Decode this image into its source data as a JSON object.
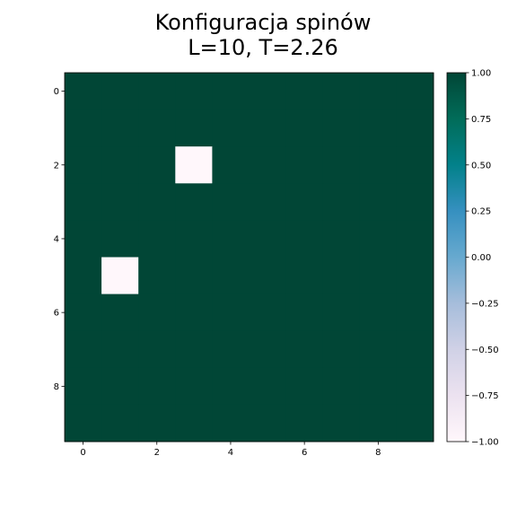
{
  "chart_data": {
    "type": "heatmap",
    "title_line1": "Konfiguracja spinów",
    "title_line2": "L=10, T=2.26",
    "xlabel": "",
    "ylabel": "",
    "grid_size": 10,
    "x_ticks": [
      0,
      2,
      4,
      6,
      8
    ],
    "x_tick_labels": [
      "0",
      "2",
      "4",
      "6",
      "8"
    ],
    "y_ticks": [
      0,
      2,
      4,
      6,
      8
    ],
    "y_tick_labels": [
      "0",
      "2",
      "4",
      "6",
      "8"
    ],
    "xlim": [
      -0.5,
      9.5
    ],
    "ylim": [
      9.5,
      -0.5
    ],
    "colormap": "PuBuGn",
    "vmin": -1,
    "vmax": 1,
    "colorbar_ticks": [
      1.0,
      0.75,
      0.5,
      0.25,
      0.0,
      -0.25,
      -0.5,
      -0.75,
      -1.0
    ],
    "colorbar_tick_labels": [
      "1.00",
      "0.75",
      "0.50",
      "0.25",
      "0.00",
      "−0.25",
      "−0.50",
      "−0.75",
      "−1.00"
    ],
    "colorbar_stops": [
      "#fff7fb",
      "#ece2f0",
      "#d0d1e6",
      "#a6bddb",
      "#67a9cf",
      "#3690c0",
      "#02818a",
      "#016c59",
      "#014636"
    ],
    "values": [
      [
        1,
        1,
        1,
        1,
        1,
        1,
        1,
        1,
        1,
        1
      ],
      [
        1,
        1,
        1,
        1,
        1,
        1,
        1,
        1,
        1,
        1
      ],
      [
        1,
        1,
        1,
        -1,
        1,
        1,
        1,
        1,
        1,
        1
      ],
      [
        1,
        1,
        1,
        1,
        1,
        1,
        1,
        1,
        1,
        1
      ],
      [
        1,
        1,
        1,
        1,
        1,
        1,
        1,
        1,
        1,
        1
      ],
      [
        1,
        -1,
        1,
        1,
        1,
        1,
        1,
        1,
        1,
        1
      ],
      [
        1,
        1,
        1,
        1,
        1,
        1,
        1,
        1,
        1,
        1
      ],
      [
        1,
        1,
        1,
        1,
        1,
        1,
        1,
        1,
        1,
        1
      ],
      [
        1,
        1,
        1,
        1,
        1,
        1,
        1,
        1,
        1,
        1
      ],
      [
        1,
        1,
        1,
        1,
        1,
        1,
        1,
        1,
        1,
        1
      ]
    ]
  }
}
